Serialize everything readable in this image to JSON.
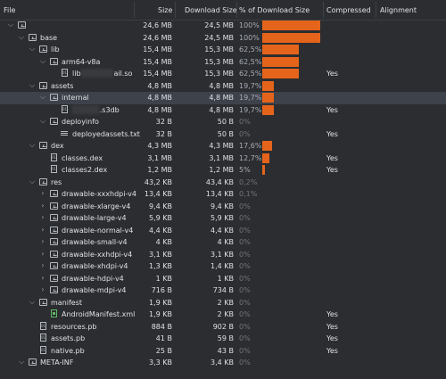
{
  "columns": {
    "file": "File",
    "size": "Size",
    "download": "Download Size",
    "pct": "% of Download Size",
    "compressed": "Compressed",
    "alignment": "Alignment"
  },
  "colors": {
    "bar": "#e5641b",
    "background": "#2b2d30",
    "selected": "#3d424b"
  },
  "rows": [
    {
      "depth": 0,
      "arrow": "down",
      "icon": "folder",
      "name": "",
      "size": "24,6 MB",
      "dl": "24,5 MB",
      "pct": "100%",
      "bar": 1.0,
      "comp": ""
    },
    {
      "depth": 1,
      "arrow": "down",
      "icon": "folder",
      "name": "base",
      "size": "24,6 MB",
      "dl": "24,5 MB",
      "pct": "100%",
      "bar": 1.0,
      "comp": ""
    },
    {
      "depth": 2,
      "arrow": "down",
      "icon": "folder",
      "name": "lib",
      "size": "15,4 MB",
      "dl": "15,3 MB",
      "pct": "62,5%",
      "bar": 0.625,
      "comp": ""
    },
    {
      "depth": 3,
      "arrow": "down",
      "icon": "folder",
      "name": "arm64-v8a",
      "size": "15,4 MB",
      "dl": "15,3 MB",
      "pct": "62,5%",
      "bar": 0.625,
      "comp": ""
    },
    {
      "depth": 4,
      "arrow": "",
      "icon": "bin",
      "name": "lib",
      "blur": "░░░░░░",
      "name2": "ail.so",
      "size": "15,4 MB",
      "dl": "15,3 MB",
      "pct": "62,5%",
      "bar": 0.625,
      "comp": "Yes"
    },
    {
      "depth": 2,
      "arrow": "down",
      "icon": "folder",
      "name": "assets",
      "size": "4,8 MB",
      "dl": "4,8 MB",
      "pct": "19,7%",
      "bar": 0.197,
      "comp": ""
    },
    {
      "depth": 3,
      "arrow": "down",
      "icon": "folder",
      "name": "internal",
      "size": "4,8 MB",
      "dl": "4,8 MB",
      "pct": "19,7%",
      "bar": 0.197,
      "comp": "",
      "selected": true
    },
    {
      "depth": 4,
      "arrow": "",
      "icon": "bin",
      "name": "",
      "blur": "░░░░░",
      "name2": ".s3db",
      "size": "4,8 MB",
      "dl": "4,8 MB",
      "pct": "19,7%",
      "bar": 0.197,
      "comp": "Yes"
    },
    {
      "depth": 3,
      "arrow": "down",
      "icon": "folder",
      "name": "deployinfo",
      "size": "32 B",
      "dl": "50 B",
      "pct": "0%",
      "bar": 0,
      "comp": "",
      "dim": true
    },
    {
      "depth": 4,
      "arrow": "",
      "icon": "lines",
      "name": "deployedassets.txt",
      "size": "32 B",
      "dl": "50 B",
      "pct": "0%",
      "bar": 0,
      "comp": "Yes",
      "dim": true
    },
    {
      "depth": 2,
      "arrow": "down",
      "icon": "folder",
      "name": "dex",
      "size": "4,3 MB",
      "dl": "4,3 MB",
      "pct": "17,6%",
      "bar": 0.176,
      "comp": ""
    },
    {
      "depth": 3,
      "arrow": "",
      "icon": "bin",
      "name": "classes.dex",
      "size": "3,1 MB",
      "dl": "3,1 MB",
      "pct": "12,7%",
      "bar": 0.127,
      "comp": "Yes"
    },
    {
      "depth": 3,
      "arrow": "",
      "icon": "bin",
      "name": "classes2.dex",
      "size": "1,2 MB",
      "dl": "1,2 MB",
      "pct": "5%",
      "bar": 0.05,
      "comp": "Yes"
    },
    {
      "depth": 2,
      "arrow": "down",
      "icon": "folder",
      "name": "res",
      "size": "43,2 KB",
      "dl": "43,4 KB",
      "pct": "0,2%",
      "bar": 0,
      "comp": "",
      "dim": true
    },
    {
      "depth": 3,
      "arrow": "right",
      "icon": "folder",
      "name": "drawable-xxxhdpi-v4",
      "size": "13,4 KB",
      "dl": "13,4 KB",
      "pct": "0,1%",
      "bar": 0,
      "comp": "",
      "dim": true
    },
    {
      "depth": 3,
      "arrow": "right",
      "icon": "folder",
      "name": "drawable-xlarge-v4",
      "size": "9,4 KB",
      "dl": "9,4 KB",
      "pct": "0%",
      "bar": 0,
      "comp": "",
      "dim": true
    },
    {
      "depth": 3,
      "arrow": "right",
      "icon": "folder",
      "name": "drawable-large-v4",
      "size": "5,9 KB",
      "dl": "5,9 KB",
      "pct": "0%",
      "bar": 0,
      "comp": "",
      "dim": true
    },
    {
      "depth": 3,
      "arrow": "right",
      "icon": "folder",
      "name": "drawable-normal-v4",
      "size": "4,4 KB",
      "dl": "4,4 KB",
      "pct": "0%",
      "bar": 0,
      "comp": "",
      "dim": true
    },
    {
      "depth": 3,
      "arrow": "right",
      "icon": "folder",
      "name": "drawable-small-v4",
      "size": "4 KB",
      "dl": "4 KB",
      "pct": "0%",
      "bar": 0,
      "comp": "",
      "dim": true
    },
    {
      "depth": 3,
      "arrow": "right",
      "icon": "folder",
      "name": "drawable-xxhdpi-v4",
      "size": "3,1 KB",
      "dl": "3,1 KB",
      "pct": "0%",
      "bar": 0,
      "comp": "",
      "dim": true
    },
    {
      "depth": 3,
      "arrow": "right",
      "icon": "folder",
      "name": "drawable-xhdpi-v4",
      "size": "1,3 KB",
      "dl": "1,4 KB",
      "pct": "0%",
      "bar": 0,
      "comp": "",
      "dim": true
    },
    {
      "depth": 3,
      "arrow": "right",
      "icon": "folder",
      "name": "drawable-hdpi-v4",
      "size": "1 KB",
      "dl": "1 KB",
      "pct": "0%",
      "bar": 0,
      "comp": "",
      "dim": true
    },
    {
      "depth": 3,
      "arrow": "right",
      "icon": "folder",
      "name": "drawable-mdpi-v4",
      "size": "716 B",
      "dl": "734 B",
      "pct": "0%",
      "bar": 0,
      "comp": "",
      "dim": true
    },
    {
      "depth": 2,
      "arrow": "down",
      "icon": "folder",
      "name": "manifest",
      "size": "1,9 KB",
      "dl": "2 KB",
      "pct": "0%",
      "bar": 0,
      "comp": "",
      "dim": true
    },
    {
      "depth": 3,
      "arrow": "",
      "icon": "xml",
      "name": "AndroidManifest.xml",
      "size": "1,9 KB",
      "dl": "2 KB",
      "pct": "0%",
      "bar": 0,
      "comp": "Yes",
      "dim": true
    },
    {
      "depth": 2,
      "arrow": "",
      "icon": "bin",
      "name": "resources.pb",
      "size": "884 B",
      "dl": "902 B",
      "pct": "0%",
      "bar": 0,
      "comp": "Yes",
      "dim": true
    },
    {
      "depth": 2,
      "arrow": "",
      "icon": "bin",
      "name": "assets.pb",
      "size": "41 B",
      "dl": "59 B",
      "pct": "0%",
      "bar": 0,
      "comp": "Yes",
      "dim": true
    },
    {
      "depth": 2,
      "arrow": "",
      "icon": "bin",
      "name": "native.pb",
      "size": "25 B",
      "dl": "43 B",
      "pct": "0%",
      "bar": 0,
      "comp": "Yes",
      "dim": true
    },
    {
      "depth": 1,
      "arrow": "down",
      "icon": "folder",
      "name": "META-INF",
      "size": "3,3 KB",
      "dl": "3,4 KB",
      "pct": "0%",
      "bar": 0,
      "comp": "",
      "dim": true
    }
  ]
}
